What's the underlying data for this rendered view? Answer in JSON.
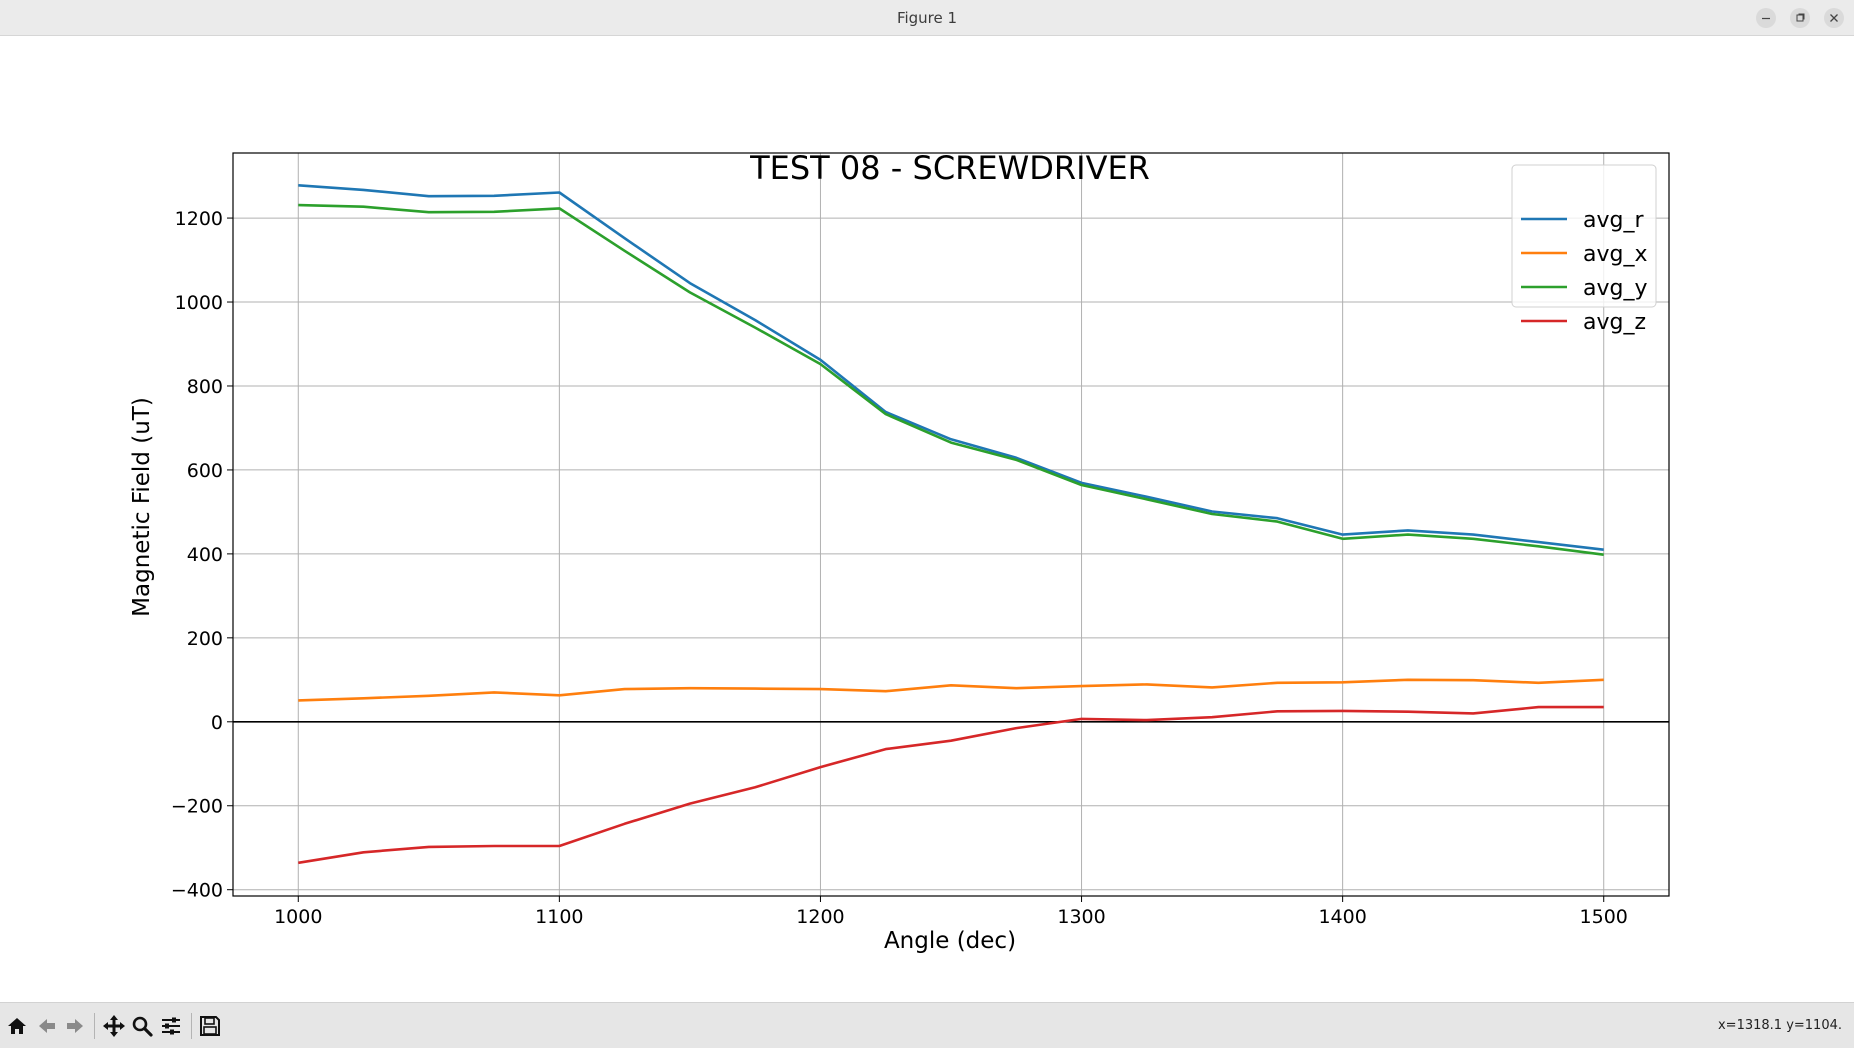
{
  "window": {
    "title": "Figure 1"
  },
  "status": {
    "coords": "x=1318.1 y=1104."
  },
  "toolbar": {
    "icons": [
      "home-icon",
      "back-icon",
      "forward-icon",
      "pan-icon",
      "zoom-icon",
      "configure-subplots-icon",
      "save-icon"
    ]
  },
  "chart_data": {
    "type": "line",
    "title": "TEST 08 - SCREWDRIVER",
    "xlabel": "Angle (dec)",
    "ylabel": "Magnetic Field (uT)",
    "xlim": [
      975,
      1525
    ],
    "ylim": [
      -415,
      1355
    ],
    "xticks": [
      1000,
      1100,
      1200,
      1300,
      1400,
      1500
    ],
    "yticks": [
      -400,
      -200,
      0,
      200,
      400,
      600,
      800,
      1000,
      1200
    ],
    "grid": true,
    "zero_line": true,
    "legend_position": "top-right",
    "x": [
      1000,
      1025,
      1050,
      1075,
      1100,
      1125,
      1150,
      1175,
      1200,
      1225,
      1250,
      1275,
      1300,
      1325,
      1350,
      1375,
      1400,
      1425,
      1450,
      1475,
      1500
    ],
    "series": [
      {
        "name": "avg_r",
        "color": "#1f77b4",
        "values": [
          1278,
          1267,
          1252,
          1253,
          1261,
          1152,
          1045,
          957,
          862,
          738,
          673,
          629,
          569,
          536,
          501,
          485,
          446,
          456,
          446,
          428,
          410
        ]
      },
      {
        "name": "avg_x",
        "color": "#ff7f0e",
        "values": [
          51,
          56,
          62,
          70,
          63,
          78,
          80,
          79,
          78,
          73,
          87,
          80,
          85,
          89,
          82,
          93,
          94,
          100,
          99,
          93,
          100
        ]
      },
      {
        "name": "avg_y",
        "color": "#2ca02c",
        "values": [
          1231,
          1227,
          1214,
          1215,
          1223,
          1122,
          1023,
          939,
          852,
          733,
          665,
          624,
          564,
          530,
          495,
          477,
          436,
          446,
          436,
          418,
          398
        ]
      },
      {
        "name": "avg_z",
        "color": "#d62728",
        "values": [
          -336,
          -311,
          -298,
          -296,
          -296,
          -243,
          -195,
          -156,
          -108,
          -65,
          -45,
          -15,
          7,
          4,
          11,
          25,
          26,
          24,
          20,
          35,
          35
        ]
      }
    ]
  }
}
